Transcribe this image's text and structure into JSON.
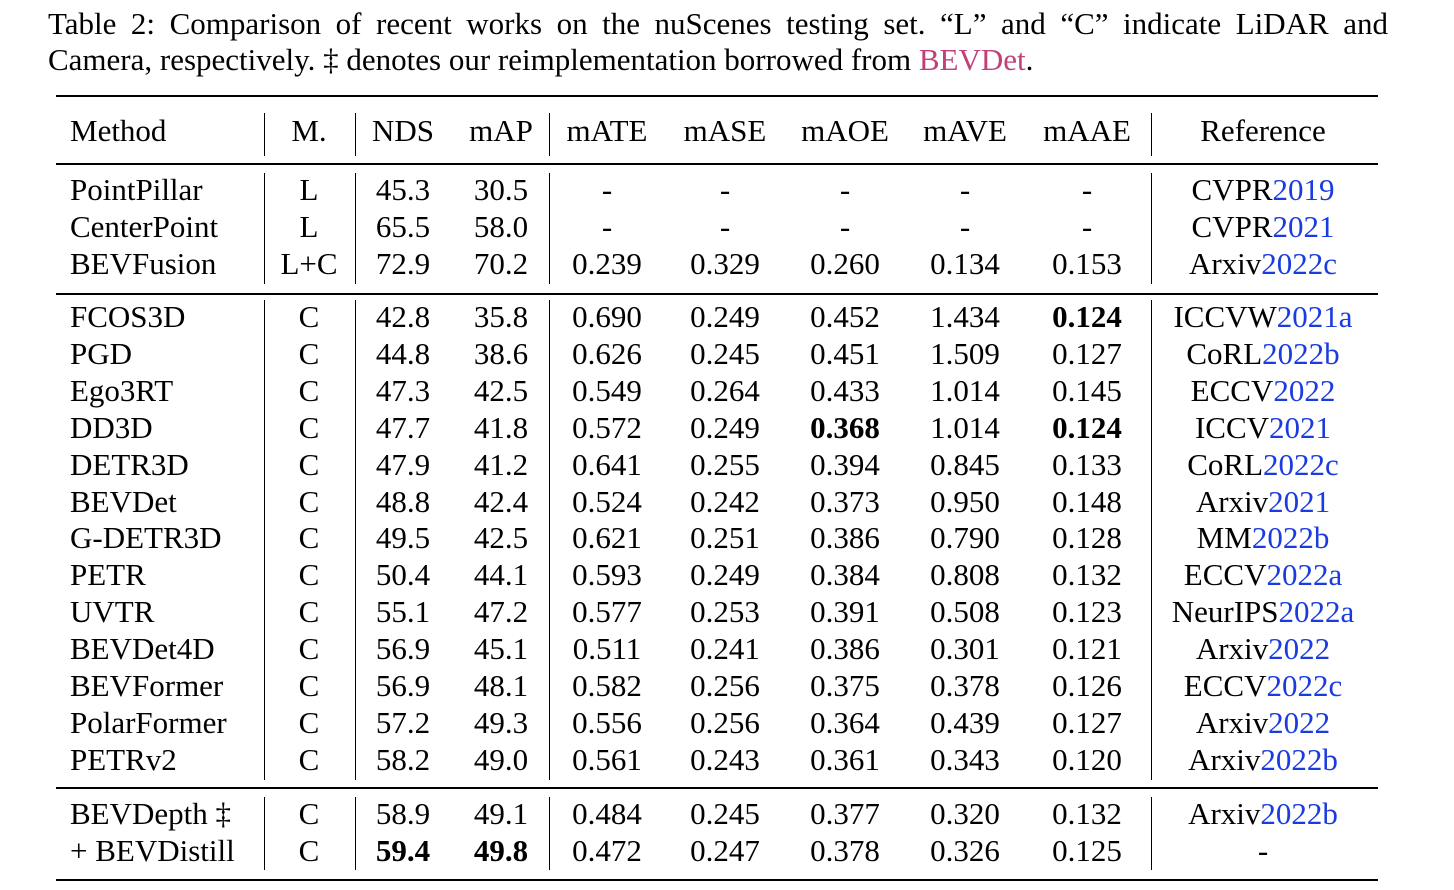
{
  "caption": {
    "prefix": "Table 2: Comparison of recent works on the nuScenes testing set. “L” and “C” indicate LiDAR and Camera, respectively. ‡ denotes our reimplementation borrowed from ",
    "link": "BEVDet",
    "suffix": "."
  },
  "headers": [
    "Method",
    "M.",
    "NDS",
    "mAP",
    "mATE",
    "mASE",
    "mAOE",
    "mAVE",
    "mAAE",
    "Reference"
  ],
  "groups": [
    [
      {
        "method": "PointPillar",
        "m": "L",
        "nds": "45.3",
        "map": "30.5",
        "mate": "-",
        "mase": "-",
        "maoe": "-",
        "mave": "-",
        "maae": "-",
        "ref": "CVPR",
        "year": "2019"
      },
      {
        "method": "CenterPoint",
        "m": "L",
        "nds": "65.5",
        "map": "58.0",
        "mate": "-",
        "mase": "-",
        "maoe": "-",
        "mave": "-",
        "maae": "-",
        "ref": "CVPR",
        "year": "2021"
      },
      {
        "method": "BEVFusion",
        "m": "L+C",
        "nds": "72.9",
        "map": "70.2",
        "mate": "0.239",
        "mase": "0.329",
        "maoe": "0.260",
        "mave": "0.134",
        "maae": "0.153",
        "ref": "Arxiv",
        "year": "2022c"
      }
    ],
    [
      {
        "method": "FCOS3D",
        "m": "C",
        "nds": "42.8",
        "map": "35.8",
        "mate": "0.690",
        "mase": "0.249",
        "maoe": "0.452",
        "mave": "1.434",
        "maae": "0.124",
        "ref": "ICCVW",
        "year": "2021a",
        "bold": [
          "maae"
        ]
      },
      {
        "method": "PGD",
        "m": "C",
        "nds": "44.8",
        "map": "38.6",
        "mate": "0.626",
        "mase": "0.245",
        "maoe": "0.451",
        "mave": "1.509",
        "maae": "0.127",
        "ref": "CoRL",
        "year": "2022b"
      },
      {
        "method": "Ego3RT",
        "m": "C",
        "nds": "47.3",
        "map": "42.5",
        "mate": "0.549",
        "mase": "0.264",
        "maoe": "0.433",
        "mave": "1.014",
        "maae": "0.145",
        "ref": "ECCV",
        "year": "2022"
      },
      {
        "method": "DD3D",
        "m": "C",
        "nds": "47.7",
        "map": "41.8",
        "mate": "0.572",
        "mase": "0.249",
        "maoe": "0.368",
        "mave": "1.014",
        "maae": "0.124",
        "ref": "ICCV",
        "year": "2021",
        "bold": [
          "maoe",
          "maae"
        ]
      },
      {
        "method": "DETR3D",
        "m": "C",
        "nds": "47.9",
        "map": "41.2",
        "mate": "0.641",
        "mase": "0.255",
        "maoe": "0.394",
        "mave": "0.845",
        "maae": "0.133",
        "ref": "CoRL",
        "year": "2022c"
      },
      {
        "method": "BEVDet",
        "m": "C",
        "nds": "48.8",
        "map": "42.4",
        "mate": "0.524",
        "mase": "0.242",
        "maoe": "0.373",
        "mave": "0.950",
        "maae": "0.148",
        "ref": "Arxiv",
        "year": "2021"
      },
      {
        "method": "G-DETR3D",
        "m": "C",
        "nds": "49.5",
        "map": "42.5",
        "mate": "0.621",
        "mase": "0.251",
        "maoe": "0.386",
        "mave": "0.790",
        "maae": "0.128",
        "ref": "MM",
        "year": "2022b"
      },
      {
        "method": "PETR",
        "m": "C",
        "nds": "50.4",
        "map": "44.1",
        "mate": "0.593",
        "mase": "0.249",
        "maoe": "0.384",
        "mave": "0.808",
        "maae": "0.132",
        "ref": "ECCV",
        "year": "2022a"
      },
      {
        "method": "UVTR",
        "m": "C",
        "nds": "55.1",
        "map": "47.2",
        "mate": "0.577",
        "mase": "0.253",
        "maoe": "0.391",
        "mave": "0.508",
        "maae": "0.123",
        "ref": "NeurIPS",
        "year": "2022a"
      },
      {
        "method": "BEVDet4D",
        "m": "C",
        "nds": "56.9",
        "map": "45.1",
        "mate": "0.511",
        "mase": "0.241",
        "maoe": "0.386",
        "mave": "0.301",
        "maae": "0.121",
        "ref": "Arxiv",
        "year": "2022"
      },
      {
        "method": "BEVFormer",
        "m": "C",
        "nds": "56.9",
        "map": "48.1",
        "mate": "0.582",
        "mase": "0.256",
        "maoe": "0.375",
        "mave": "0.378",
        "maae": "0.126",
        "ref": "ECCV",
        "year": "2022c"
      },
      {
        "method": "PolarFormer",
        "m": "C",
        "nds": "57.2",
        "map": "49.3",
        "mate": "0.556",
        "mase": "0.256",
        "maoe": "0.364",
        "mave": "0.439",
        "maae": "0.127",
        "ref": "Arxiv",
        "year": "2022"
      },
      {
        "method": "PETRv2",
        "m": "C",
        "nds": "58.2",
        "map": "49.0",
        "mate": "0.561",
        "mase": "0.243",
        "maoe": "0.361",
        "mave": "0.343",
        "maae": "0.120",
        "ref": "Arxiv",
        "year": "2022b"
      }
    ],
    [
      {
        "method": "BEVDepth ‡",
        "m": "C",
        "nds": "58.9",
        "map": "49.1",
        "mate": "0.484",
        "mase": "0.245",
        "maoe": "0.377",
        "mave": "0.320",
        "maae": "0.132",
        "ref": "Arxiv",
        "year": "2022b"
      },
      {
        "method": "+ BEVDistill",
        "m": "C",
        "nds": "59.4",
        "map": "49.8",
        "mate": "0.472",
        "mase": "0.247",
        "maoe": "0.378",
        "mave": "0.326",
        "maae": "0.125",
        "ref": "-",
        "year": "",
        "bold": [
          "nds",
          "map"
        ]
      }
    ]
  ]
}
